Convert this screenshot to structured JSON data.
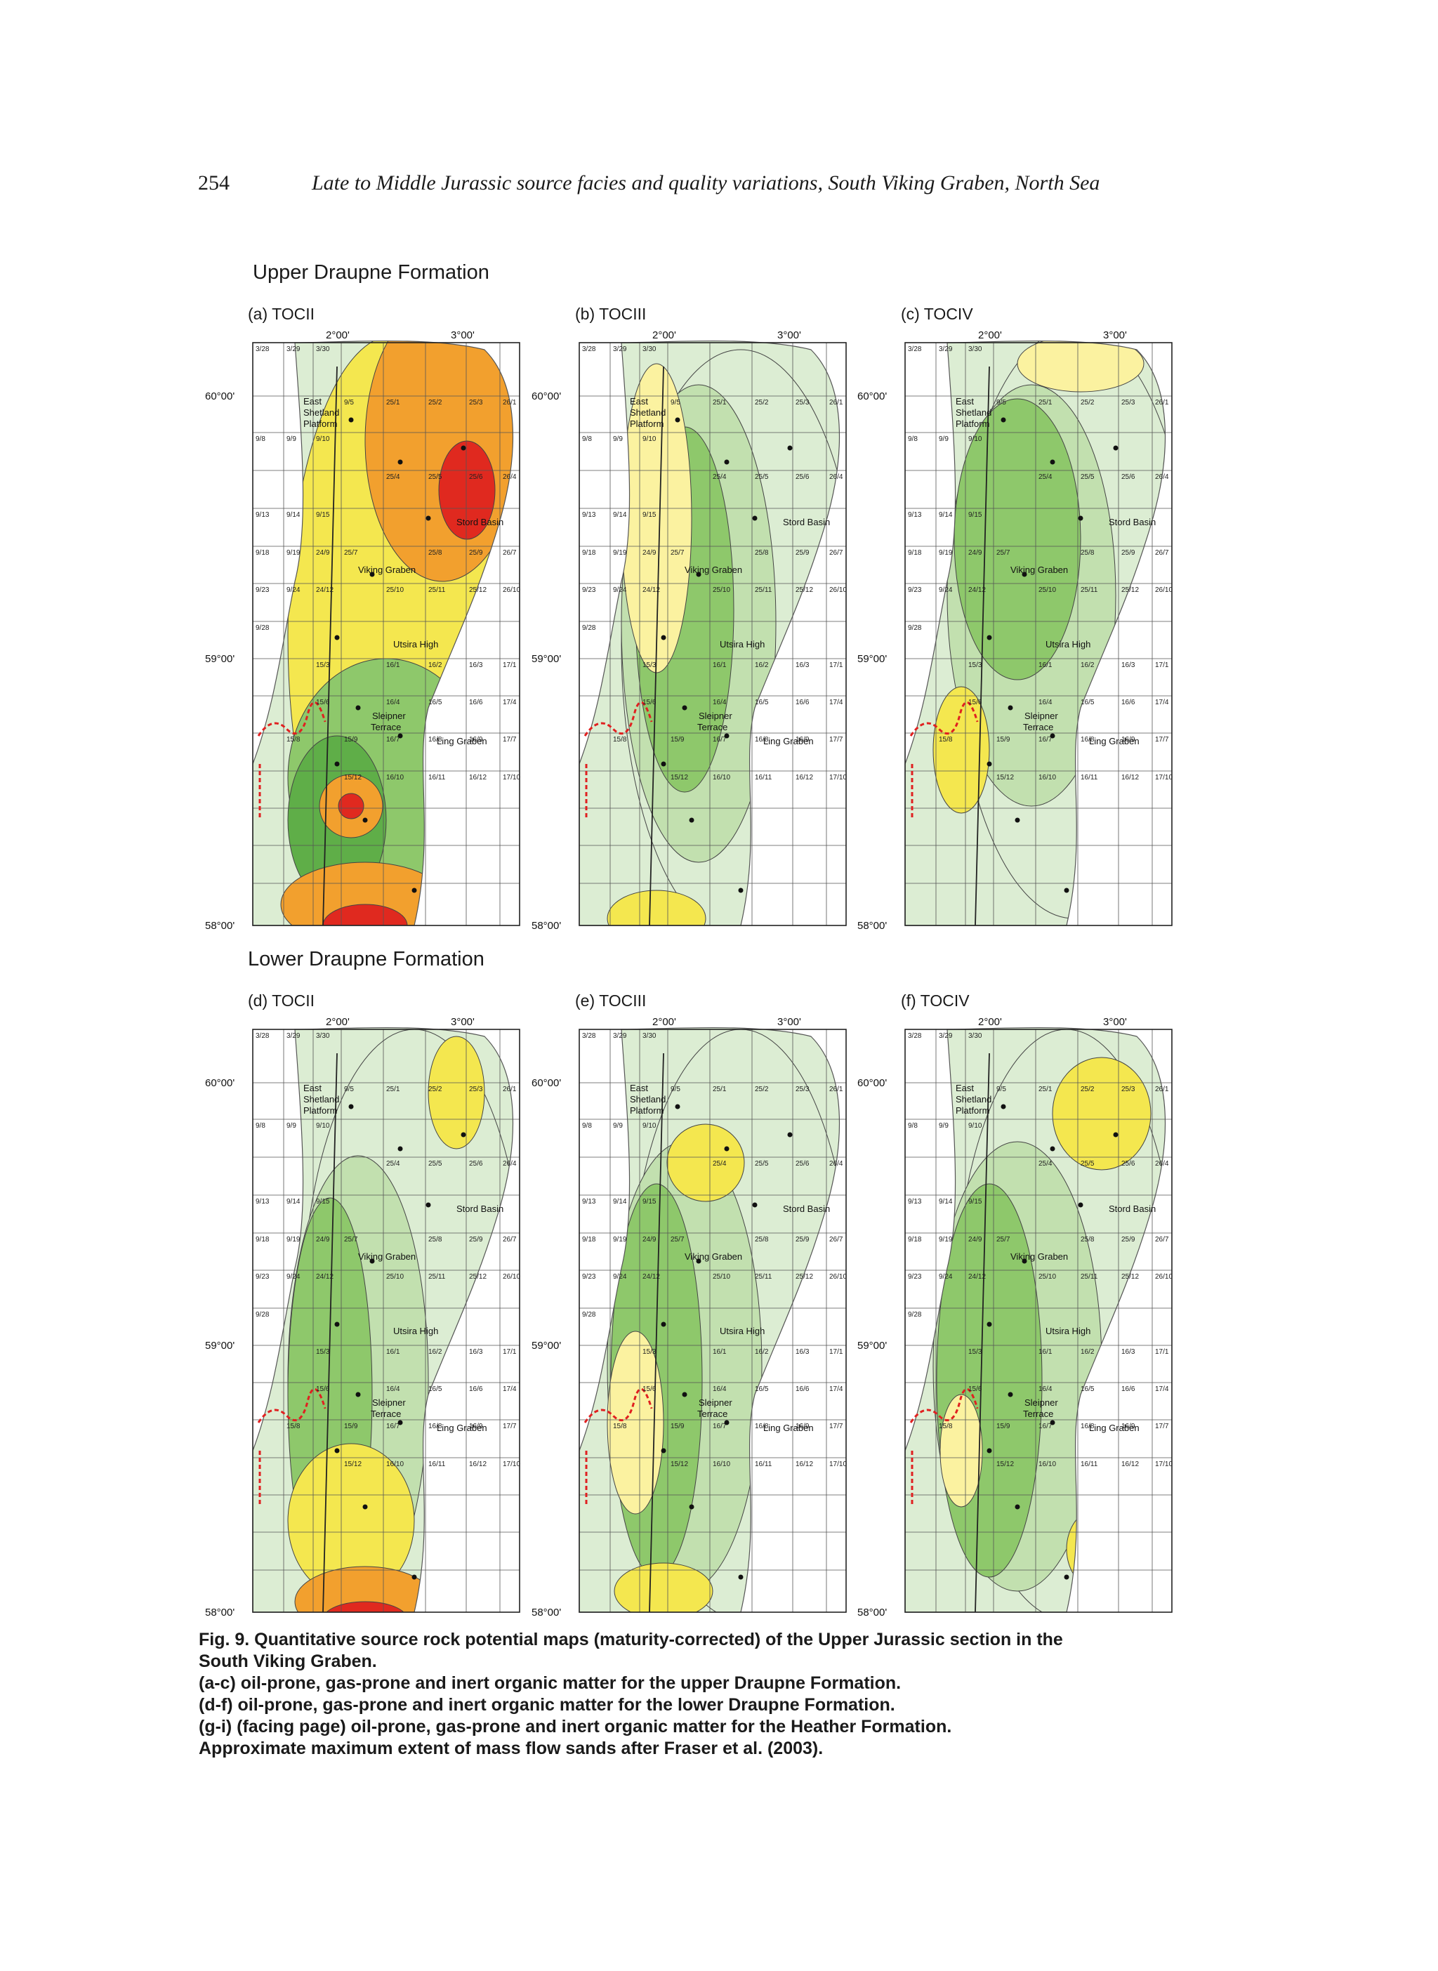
{
  "page_number": "254",
  "running_title": "Late to Middle Jurassic source facies and quality variations, South Viking Graben, North Sea",
  "sections": [
    {
      "title": "Upper Draupne Formation"
    },
    {
      "title": "Lower Draupne Formation"
    }
  ],
  "panels": [
    {
      "label": "(a) TOCII",
      "scheme": "oil_a"
    },
    {
      "label": "(b) TOCIII",
      "scheme": "gas_b"
    },
    {
      "label": "(c) TOCIV",
      "scheme": "inert_c"
    },
    {
      "label": "(d) TOCII",
      "scheme": "oil_d"
    },
    {
      "label": "(e) TOCIII",
      "scheme": "gas_e"
    },
    {
      "label": "(f) TOCIV",
      "scheme": "inert_f"
    }
  ],
  "map": {
    "longitude_labels": [
      "2°00'",
      "3°00'"
    ],
    "latitude_labels": [
      "60°00'",
      "59°00'",
      "58°00'"
    ],
    "region_labels": [
      "East",
      "Shetland",
      "Platform",
      "Viking Graben",
      "Stord Basin",
      "Utsira High",
      "Sleipner",
      "Terrace",
      "Ling Graben"
    ],
    "block_labels": [
      "3/28",
      "3/29",
      "3/30",
      "9/5",
      "25/1",
      "25/2",
      "25/3",
      "26/1",
      "9/8",
      "9/9",
      "9/10",
      "25/4",
      "25/5",
      "25/6",
      "26/4",
      "9/13",
      "9/14",
      "9/15",
      "9/18",
      "9/19",
      "24/9",
      "25/7",
      "25/8",
      "25/9",
      "26/7",
      "9/23",
      "9/24",
      "24/12",
      "25/10",
      "25/11",
      "25/12",
      "26/10",
      "9/28",
      "15/3",
      "16/1",
      "16/2",
      "16/3",
      "17/1",
      "15/6",
      "16/4",
      "16/5",
      "16/6",
      "17/4",
      "15/8",
      "15/9",
      "16/7",
      "16/8",
      "16/9",
      "17/7",
      "15/12",
      "16/10",
      "16/11",
      "16/12",
      "17/10"
    ]
  },
  "caption": {
    "lines": [
      "Fig. 9. Quantitative source rock potential maps (maturity-corrected) of the Upper Jurassic section in the",
      "South Viking Graben.",
      "(a-c) oil-prone, gas-prone and inert organic matter for the upper Draupne Formation.",
      "(d-f) oil-prone, gas-prone and inert organic matter for the lower Draupne Formation.",
      "(g-i)  (facing page) oil-prone, gas-prone and inert organic matter for the Heather Formation.",
      "Approximate maximum extent of mass flow sands after Fraser et al. (2003)."
    ]
  },
  "colors": {
    "lightest_green": "#dcedd3",
    "light_green": "#c2e0af",
    "mid_green": "#8ec86b",
    "dark_green": "#5fae48",
    "pale_yellow": "#fbf2a0",
    "yellow": "#f4e74f",
    "orange": "#f2a02e",
    "red": "#e0291f",
    "fault_red": "#e02020"
  }
}
